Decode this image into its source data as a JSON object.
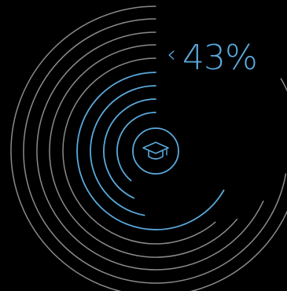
{
  "progress": {
    "percent_label": "43%",
    "percent_value": 43,
    "arrow_glyph": "‹"
  },
  "colors": {
    "background": "#000000",
    "progress": "#5aa9dc",
    "track": "#8a8a8a"
  },
  "icons": {
    "center": "graduation-cap-icon"
  }
}
